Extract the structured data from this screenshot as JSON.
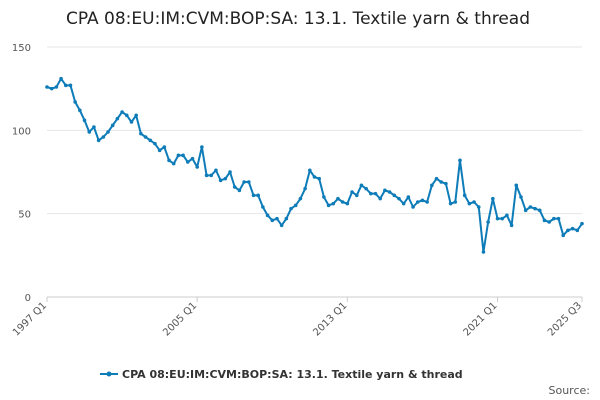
{
  "chart_data": {
    "type": "line",
    "title": "CPA 08:EU:IM:CVM:BOP:SA: 13.1. Textile yarn & thread",
    "xlabel": "",
    "ylabel": "",
    "ylim": [
      0,
      150
    ],
    "yticks": [
      "0",
      "50",
      "100",
      "150"
    ],
    "xticks": [
      "1997 Q1",
      "2005 Q1",
      "2013 Q1",
      "2021 Q1",
      "2025 Q3"
    ],
    "legend": "bottom",
    "grid": true,
    "series": [
      {
        "name": "CPA 08:EU:IM:CVM:BOP:SA: 13.1. Textile yarn & thread",
        "color": "#0e7cb8",
        "values": [
          126,
          125,
          126,
          131,
          127,
          127,
          117,
          112,
          106,
          99,
          102,
          94,
          96,
          99,
          103,
          107,
          111,
          109,
          105,
          109,
          98,
          96,
          94,
          92,
          88,
          90,
          82,
          80,
          85,
          85,
          81,
          83,
          78,
          90,
          73,
          73,
          76,
          70,
          71,
          75,
          66,
          64,
          69,
          69,
          61,
          61,
          54,
          49,
          46,
          47,
          43,
          47,
          53,
          55,
          59,
          65,
          76,
          72,
          71,
          60,
          55,
          56,
          59,
          57,
          56,
          63,
          61,
          67,
          65,
          62,
          62,
          59,
          64,
          63,
          61,
          59,
          56,
          60,
          54,
          57,
          58,
          57,
          67,
          71,
          69,
          68,
          56,
          57,
          82,
          61,
          56,
          57,
          54,
          27,
          45,
          59,
          47,
          47,
          49,
          43,
          67,
          60,
          52,
          54,
          53,
          52,
          46,
          45,
          47,
          47,
          37,
          40,
          41,
          40,
          44
        ]
      }
    ],
    "source": "Source:"
  }
}
